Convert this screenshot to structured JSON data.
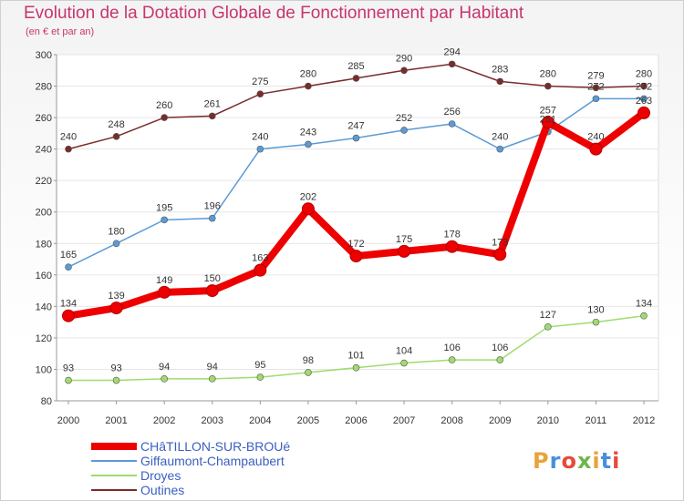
{
  "header": {
    "title": "Evolution de la Dotation Globale de Fonctionnement par Habitant",
    "subtitle": "(en € et par an)"
  },
  "logo": {
    "text": "Proxiti",
    "colors": [
      "#e8a33a",
      "#4a90d9",
      "#e84a3a",
      "#6bb84a"
    ]
  },
  "chart_data": {
    "type": "line",
    "title": "Evolution de la Dotation Globale de Fonctionnement par Habitant",
    "subtitle": "(en € et par an)",
    "xlabel": "",
    "ylabel": "",
    "ylim": [
      80,
      300
    ],
    "yticks": [
      80,
      100,
      120,
      140,
      160,
      180,
      200,
      220,
      240,
      260,
      280,
      300
    ],
    "grid": true,
    "legend_position": "bottom-left",
    "x": [
      "2000",
      "2001",
      "2002",
      "2003",
      "2004",
      "2005",
      "2006",
      "2007",
      "2008",
      "2009",
      "2010",
      "2011",
      "2012"
    ],
    "series": [
      {
        "name": "CHâTILLON-SUR-BROUé",
        "color": "#ee0000",
        "emphasis": true,
        "values": [
          134,
          139,
          149,
          150,
          163,
          202,
          172,
          175,
          178,
          173,
          257,
          240,
          263
        ],
        "labels": [
          "134",
          "139",
          "149",
          "150",
          "163",
          "202",
          "172",
          "175",
          "178",
          "173",
          "257",
          "240",
          "263"
        ]
      },
      {
        "name": "Giffaumont-Champaubert",
        "color": "#5b9bd5",
        "emphasis": false,
        "values": [
          165,
          180,
          195,
          196,
          240,
          243,
          247,
          252,
          256,
          240,
          251,
          272,
          272
        ],
        "labels": [
          "165",
          "180",
          "195",
          "196",
          "240",
          "243",
          "247",
          "252",
          "256",
          "240",
          "251",
          "272",
          "272"
        ]
      },
      {
        "name": "Droyes",
        "color": "#9edc6e",
        "emphasis": false,
        "values": [
          93,
          93,
          94,
          94,
          95,
          98,
          101,
          104,
          106,
          106,
          127,
          130,
          134
        ],
        "labels": [
          "93",
          "93",
          "94",
          "94",
          "95",
          "98",
          "101",
          "104",
          "106",
          "106",
          "127",
          "130",
          "134"
        ]
      },
      {
        "name": "Outines",
        "color": "#7a2c2c",
        "emphasis": false,
        "values": [
          240,
          248,
          260,
          261,
          275,
          280,
          285,
          290,
          294,
          283,
          280,
          279,
          280
        ],
        "labels": [
          "240",
          "248",
          "260",
          "261",
          "275",
          "280",
          "285",
          "290",
          "294",
          "283",
          "280",
          "279",
          "280"
        ]
      }
    ]
  }
}
